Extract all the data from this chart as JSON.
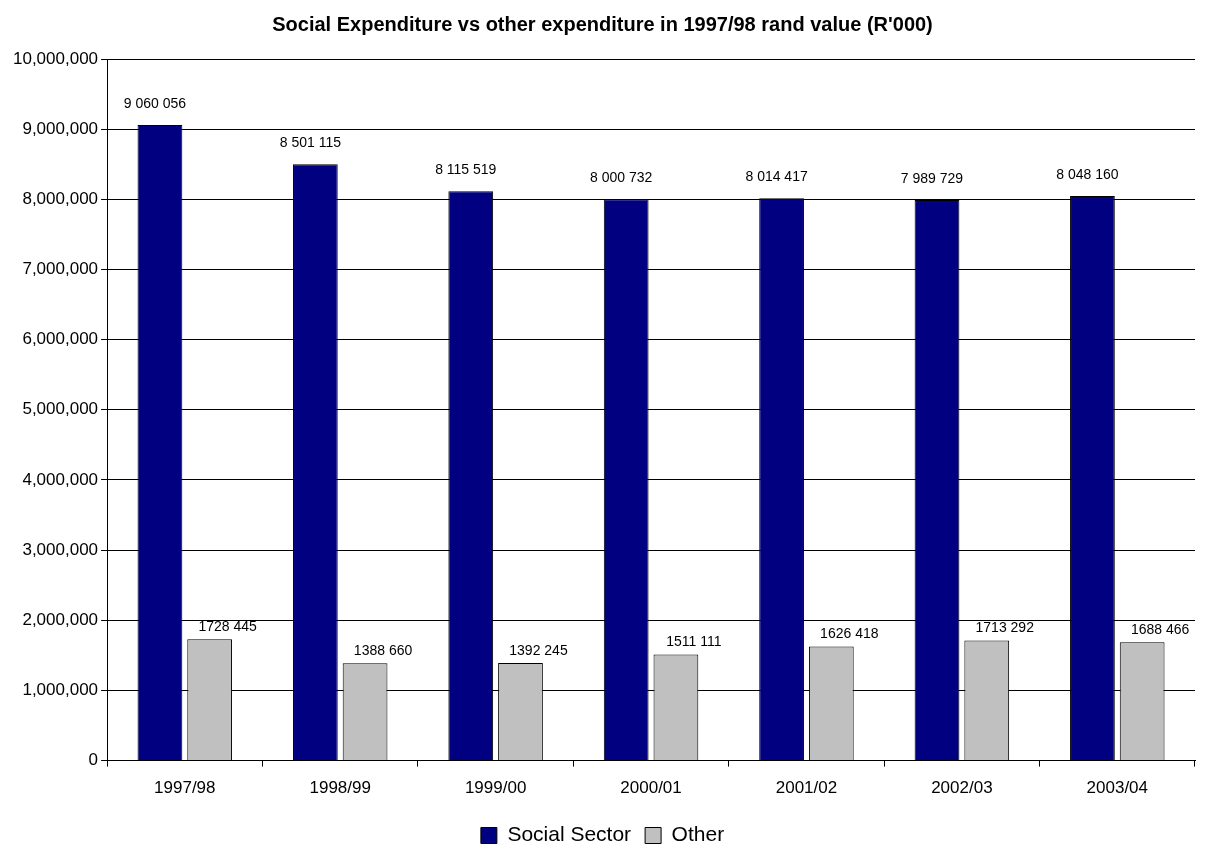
{
  "chart_data": {
    "type": "bar",
    "title": "Social Expenditure vs other expenditure in 1997/98 rand value (R'000)",
    "categories": [
      "1997/98",
      "1998/99",
      "1999/00",
      "2000/01",
      "2001/02",
      "2002/03",
      "2003/04"
    ],
    "series": [
      {
        "name": "Social Sector",
        "color": "#000080",
        "values": [
          9060056,
          8501115,
          8115519,
          8000732,
          8014417,
          7989729,
          8048160
        ],
        "value_labels": [
          "9 060 056",
          "8 501 115",
          "8 115 519",
          "8 000 732",
          "8 014 417",
          "7 989 729",
          "8 048 160"
        ]
      },
      {
        "name": "Other",
        "color": "#c0c0c0",
        "values": [
          1728445,
          1388660,
          1392245,
          1511111,
          1626418,
          1713292,
          1688466
        ],
        "value_labels": [
          "1728 445",
          "1388 660",
          "1392 245",
          "1511 111",
          "1626 418",
          "1713 292",
          "1688 466"
        ]
      }
    ],
    "ylim": [
      0,
      10000000
    ],
    "yticks": [
      0,
      {
        "value": 1000000,
        "label": "1,000,000"
      },
      {
        "value": 2000000,
        "label": "2,000,000"
      },
      {
        "value": 3000000,
        "label": "3,000,000"
      },
      {
        "value": 4000000,
        "label": "4,000,000"
      },
      {
        "value": 5000000,
        "label": "5,000,000"
      },
      {
        "value": 6000000,
        "label": "6,000,000"
      },
      {
        "value": 7000000,
        "label": "7,000,000"
      },
      {
        "value": 8000000,
        "label": "8,000,000"
      },
      {
        "value": 9000000,
        "label": "9,000,000"
      },
      {
        "value": 10000000,
        "label": "10,000,000"
      }
    ],
    "grid": "y",
    "legend": "bottom"
  }
}
